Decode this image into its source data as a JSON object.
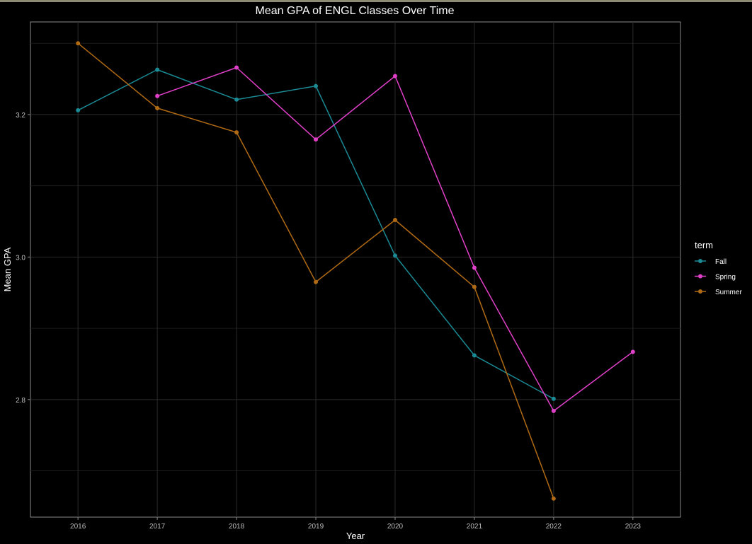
{
  "chart_data": {
    "type": "line",
    "title": "Mean GPA of ENGL Classes Over Time",
    "xlabel": "Year",
    "ylabel": "Mean GPA",
    "categories": [
      "2016",
      "2017",
      "2018",
      "2019",
      "2020",
      "2021",
      "2022",
      "2023"
    ],
    "x_ticks": [
      "2016",
      "2017",
      "2018",
      "2019",
      "2020",
      "2021",
      "2022",
      "2023"
    ],
    "y_ticks": [
      2.8,
      3.0,
      3.2
    ],
    "y_tick_labels": [
      "2.8",
      "3.0",
      "3.2"
    ],
    "ylim": [
      2.635,
      3.33
    ],
    "grid": true,
    "legend": {
      "title": "term",
      "placement": "right"
    },
    "series": [
      {
        "name": "Fall",
        "color": "#1a8a94",
        "points": [
          [
            2016,
            3.206
          ],
          [
            2017,
            3.263
          ],
          [
            2018,
            3.221
          ],
          [
            2019,
            3.24
          ],
          [
            2020,
            3.002
          ],
          [
            2021,
            2.862
          ],
          [
            2022,
            2.801
          ]
        ]
      },
      {
        "name": "Spring",
        "color": "#e040c8",
        "points": [
          [
            2017,
            3.226
          ],
          [
            2018,
            3.266
          ],
          [
            2019,
            3.165
          ],
          [
            2020,
            3.254
          ],
          [
            2021,
            2.985
          ],
          [
            2022,
            2.784
          ],
          [
            2023,
            2.867
          ]
        ]
      },
      {
        "name": "Summer",
        "color": "#b06a14",
        "points": [
          [
            2016,
            3.3
          ],
          [
            2017,
            3.209
          ],
          [
            2018,
            3.175
          ],
          [
            2019,
            2.965
          ],
          [
            2020,
            3.052
          ],
          [
            2021,
            2.958
          ],
          [
            2022,
            2.661
          ]
        ]
      }
    ]
  }
}
